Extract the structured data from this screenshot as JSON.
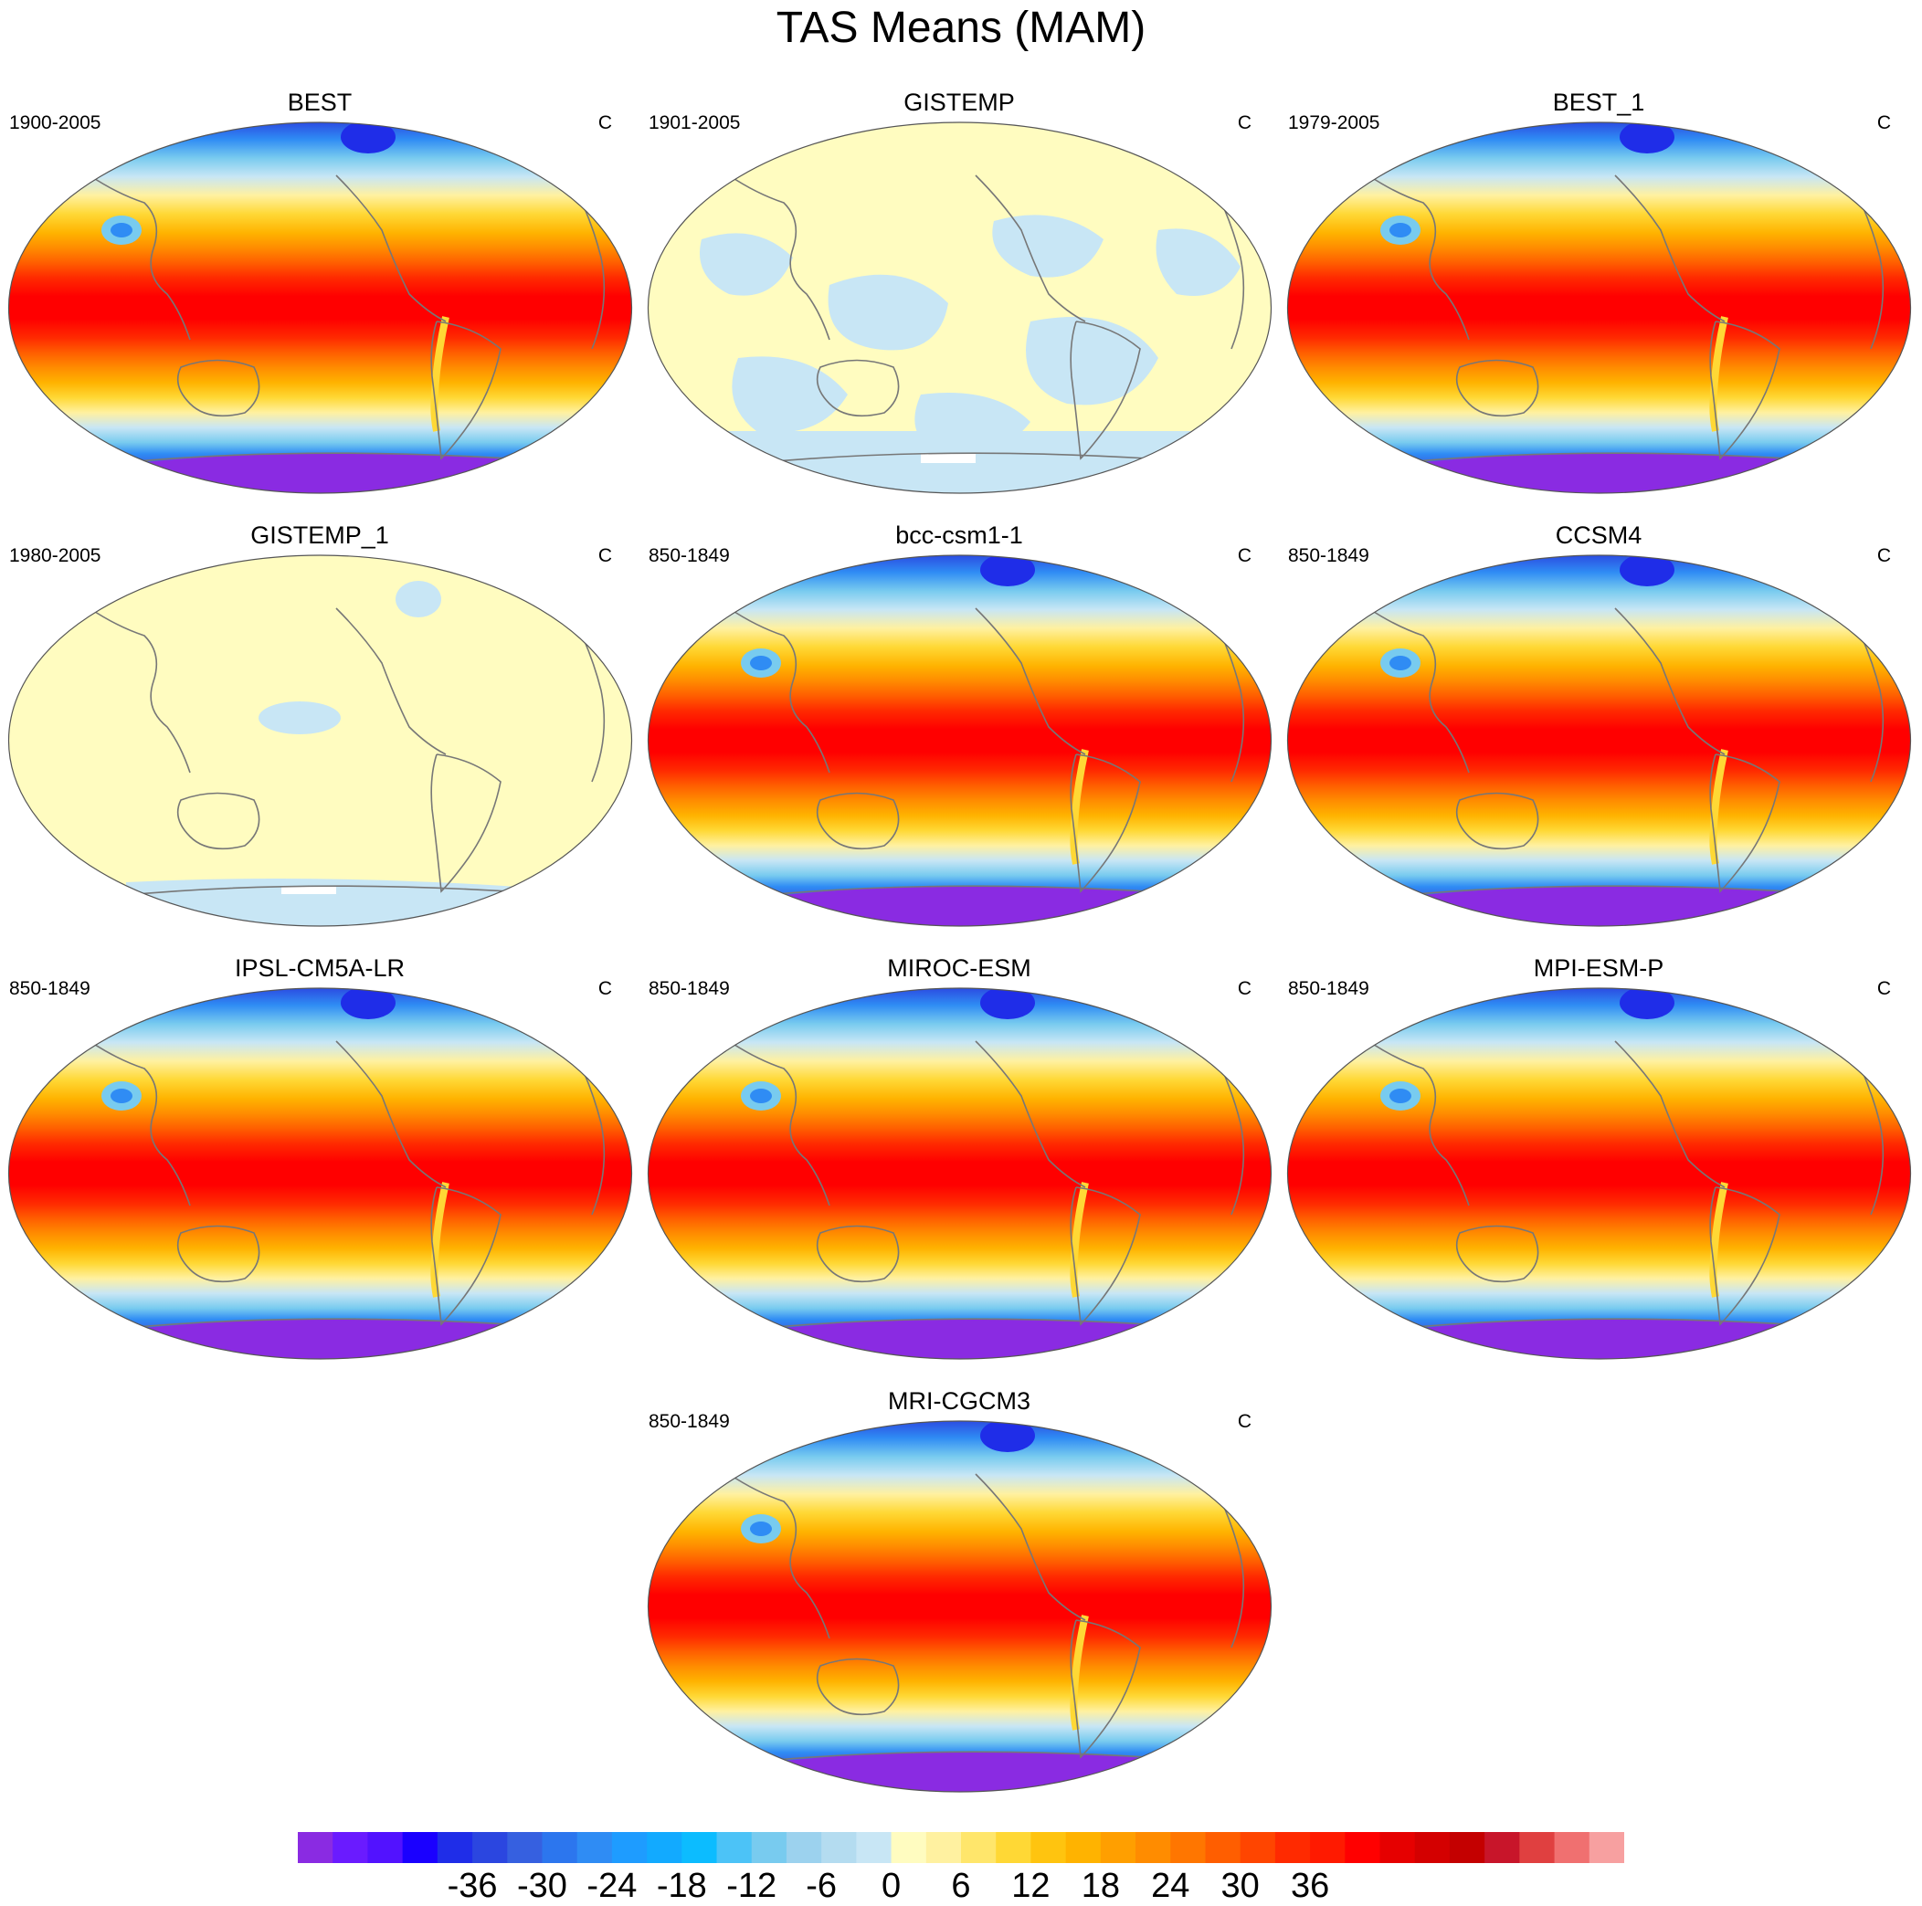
{
  "title": "TAS Means (MAM)",
  "panels": [
    {
      "name": "BEST",
      "period": "1900-2005",
      "units": "C",
      "style": "warm"
    },
    {
      "name": "GISTEMP",
      "period": "1901-2005",
      "units": "C",
      "style": "anomaly_mixed"
    },
    {
      "name": "BEST_1",
      "period": "1979-2005",
      "units": "C",
      "style": "warm"
    },
    {
      "name": "GISTEMP_1",
      "period": "1980-2005",
      "units": "C",
      "style": "anomaly_pale"
    },
    {
      "name": "bcc-csm1-1",
      "period": "850-1849",
      "units": "C",
      "style": "warm"
    },
    {
      "name": "CCSM4",
      "period": "850-1849",
      "units": "C",
      "style": "warm"
    },
    {
      "name": "IPSL-CM5A-LR",
      "period": "850-1849",
      "units": "C",
      "style": "warm"
    },
    {
      "name": "MIROC-ESM",
      "period": "850-1849",
      "units": "C",
      "style": "warm"
    },
    {
      "name": "MPI-ESM-P",
      "period": "850-1849",
      "units": "C",
      "style": "warm"
    },
    {
      "name": "MRI-CGCM3",
      "period": "850-1849",
      "units": "C",
      "style": "warm"
    }
  ],
  "colorbar": {
    "labels": [
      "-36",
      "-30",
      "-24",
      "-18",
      "-12",
      "-6",
      "0",
      "6",
      "12",
      "18",
      "24",
      "30",
      "36"
    ],
    "colors": [
      "#8a2be2",
      "#6a1bff",
      "#5212ff",
      "#1a00ff",
      "#1f2de8",
      "#2b46e0",
      "#3660e0",
      "#2c76ee",
      "#2f8cf4",
      "#1e9cff",
      "#12aaff",
      "#0cbcff",
      "#4cc3f7",
      "#78cbef",
      "#9cd2ee",
      "#b4dcf0",
      "#c8e6f5",
      "#fffcc0",
      "#fff1a0",
      "#ffe66b",
      "#ffd835",
      "#ffc40f",
      "#ffb300",
      "#ff9f00",
      "#ff8c00",
      "#ff7600",
      "#ff5e00",
      "#ff4500",
      "#ff2a00",
      "#ff1a00",
      "#ff0000",
      "#e60000",
      "#d40000",
      "#c40000",
      "#c8152a",
      "#e04040",
      "#f07070",
      "#f7a0a0"
    ]
  },
  "map_colors": {
    "ocean_pale_yellow": "#fffcc0",
    "pale_blue": "#c8e6f5",
    "coastline": "#777777"
  }
}
